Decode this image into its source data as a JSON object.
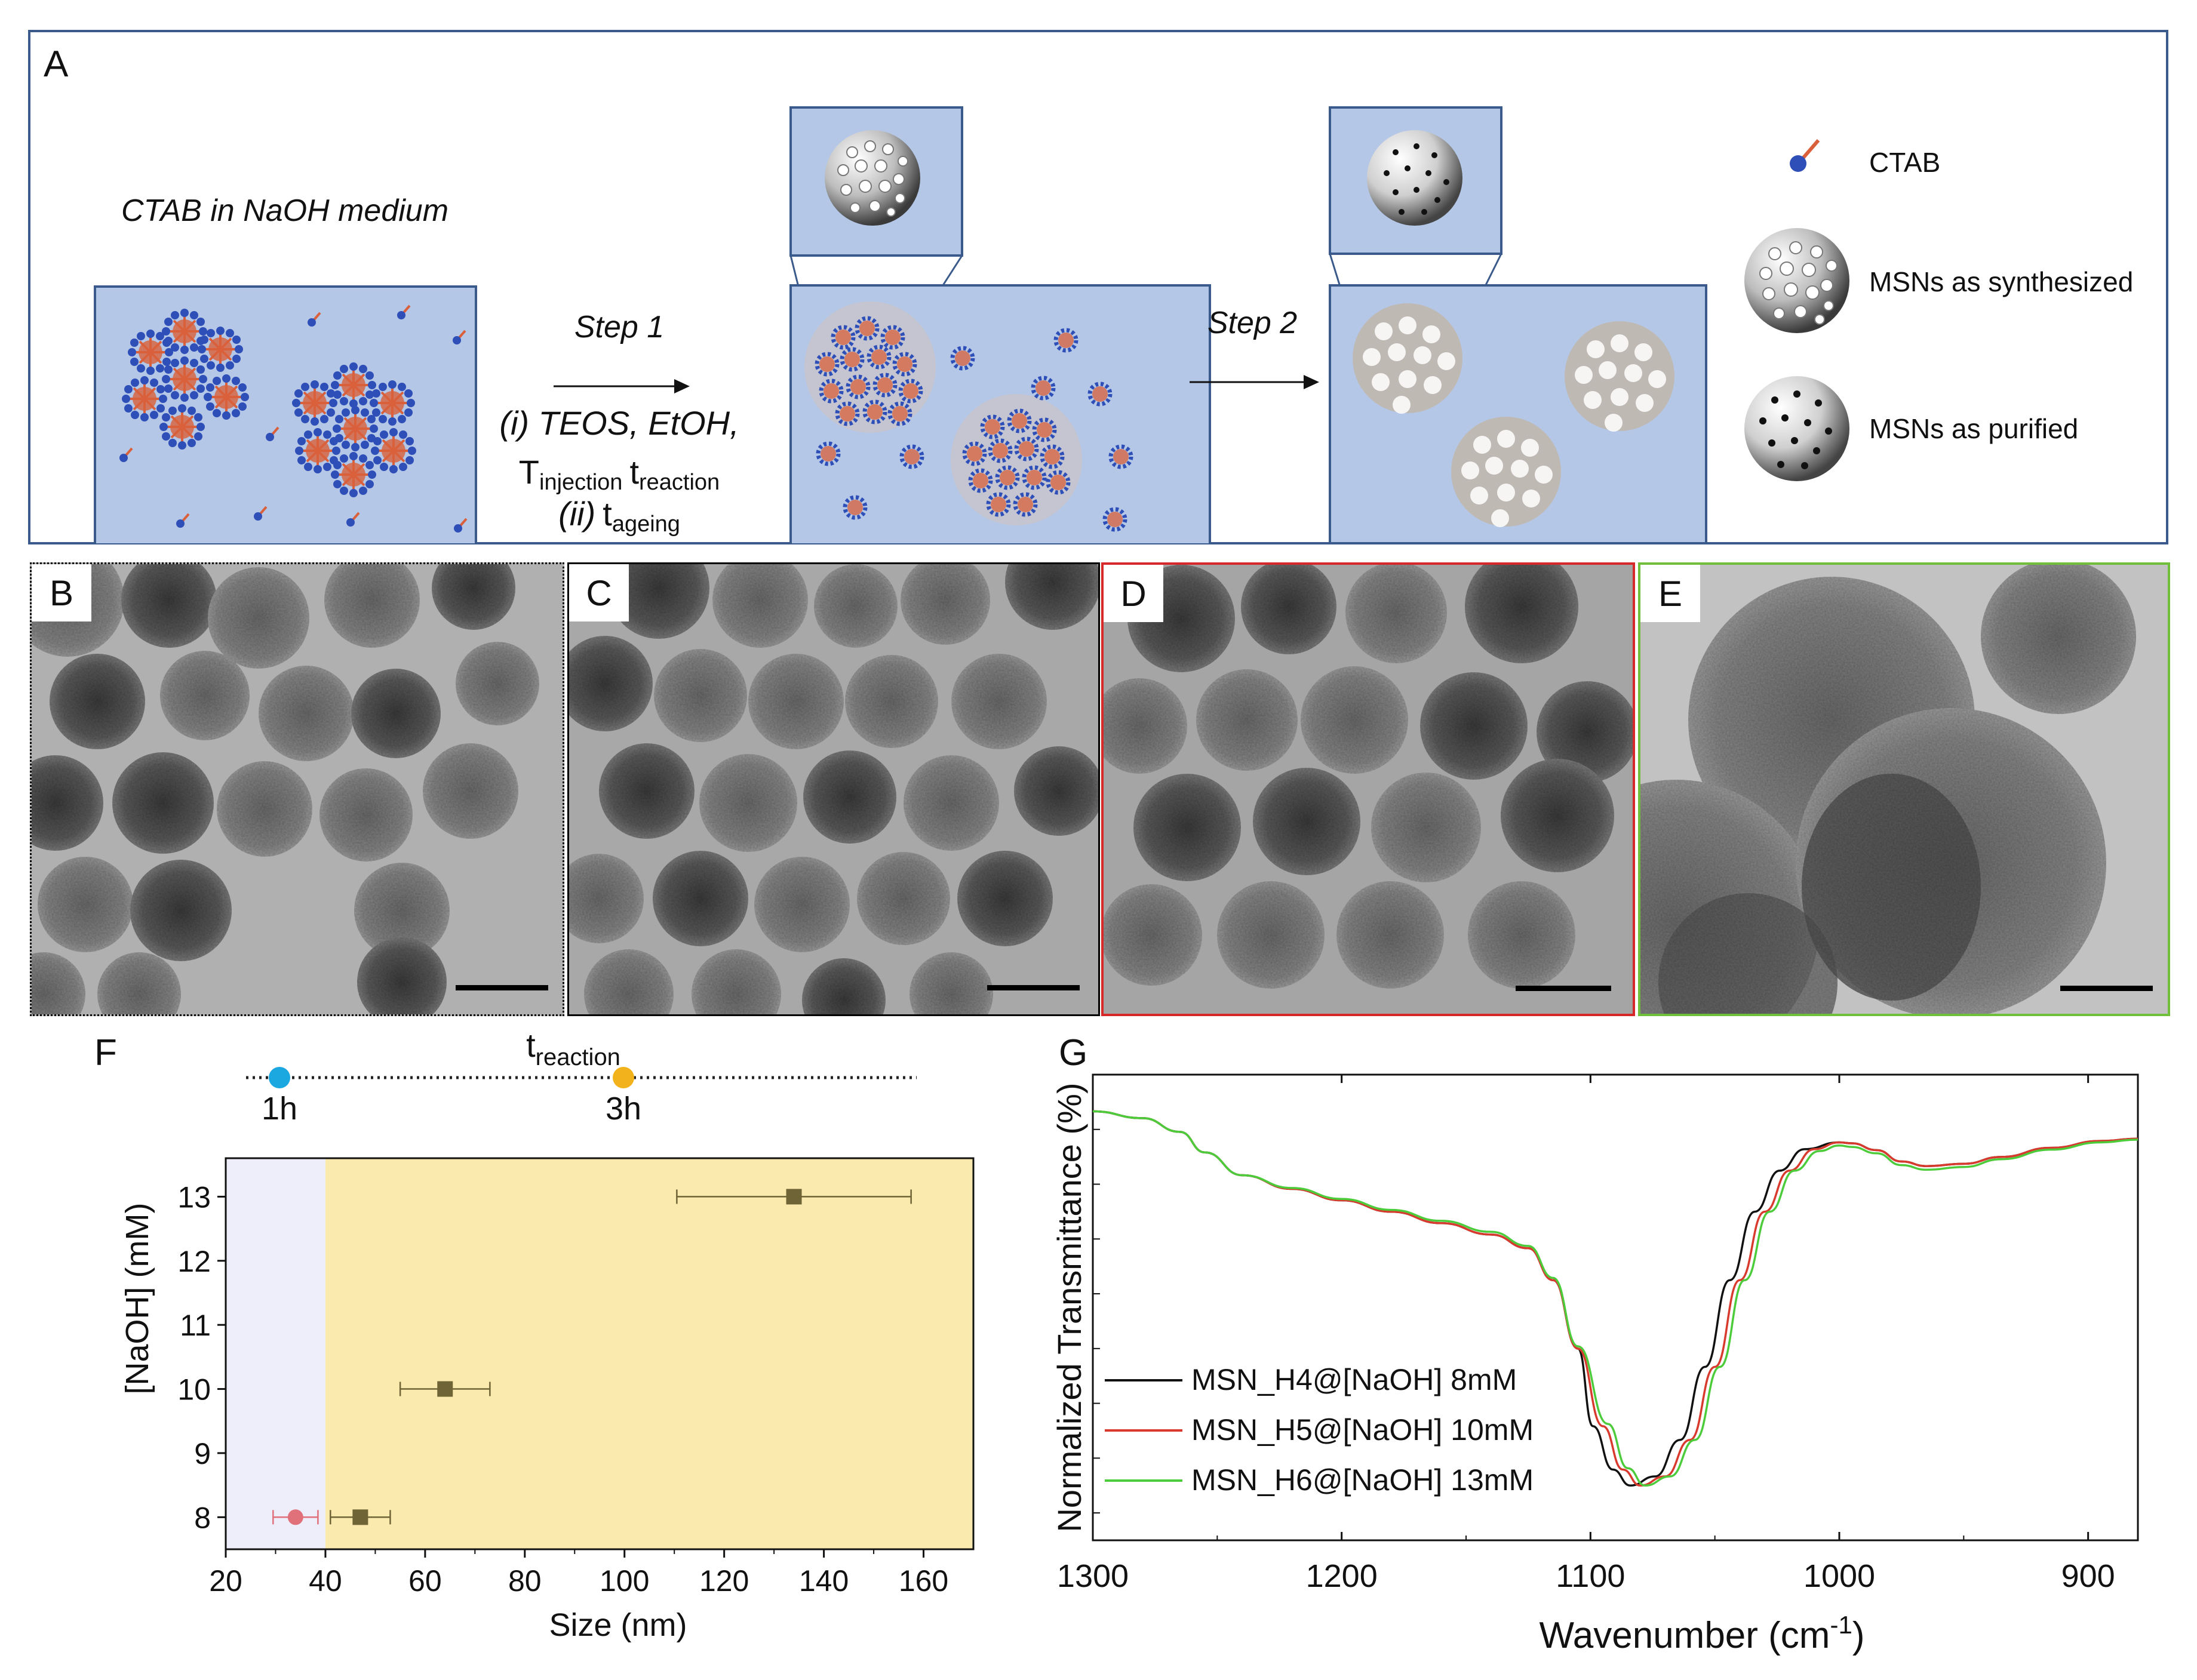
{
  "panels": {
    "A": "A",
    "B": "B",
    "C": "C",
    "D": "D",
    "E": "E",
    "F": "F",
    "G": "G"
  },
  "schematic": {
    "medium_label": "CTAB in NaOH medium",
    "step1": "Step 1",
    "step1_line1": "(i) TEOS, EtOH,",
    "step1_T": "T",
    "step1_T_sub": "injection",
    "step1_t": "t",
    "step1_t_sub": "reaction",
    "step1_line3_prefix": "(ii)",
    "step1_line3_t": "t",
    "step1_line3_sub": "ageing",
    "step2": "Step 2",
    "legend": [
      {
        "icon": "ctab-molecule-icon",
        "label": "CTAB"
      },
      {
        "icon": "msn-synthesized-icon",
        "label": "MSNs as synthesized"
      },
      {
        "icon": "msn-purified-icon",
        "label": "MSNs as purified"
      }
    ],
    "colors": {
      "box": "#b4c7e7",
      "border": "#3b5a8c",
      "ctab_head": "#2f4fb8",
      "ctab_tail": "#d9603b"
    }
  },
  "tem": {
    "frame_colors": {
      "B": "#000000",
      "C": "#000000",
      "D": "#d62828",
      "E": "#6fbf3a"
    }
  },
  "timeline": {
    "label_t": "t",
    "label_sub": "reaction",
    "points": [
      {
        "label": "1h",
        "color": "#1ba8e0"
      },
      {
        "label": "3h",
        "color": "#f2b21b"
      }
    ]
  },
  "chart_data": [
    {
      "id": "F",
      "type": "scatter",
      "title": "",
      "xlabel": "Size (nm)",
      "ylabel": "[NaOH] (mM)",
      "xlim": [
        20,
        170
      ],
      "ylim": [
        7.5,
        13.6
      ],
      "xticks": [
        20,
        40,
        60,
        80,
        100,
        120,
        140,
        160
      ],
      "yticks": [
        8,
        9,
        10,
        11,
        12,
        13
      ],
      "regions": [
        {
          "name": "1h",
          "x": [
            20,
            40
          ],
          "color": "#eeeefa"
        },
        {
          "name": "3h",
          "x": [
            40,
            170
          ],
          "color": "#fbeaad"
        }
      ],
      "series": [
        {
          "name": "1h",
          "marker": "circle",
          "color": "#e0707a",
          "points": [
            {
              "x": 34,
              "y": 8,
              "xerr": 4.5
            }
          ]
        },
        {
          "name": "3h",
          "marker": "square",
          "color": "#6e6436",
          "points": [
            {
              "x": 47,
              "y": 8,
              "xerr": 6
            },
            {
              "x": 64,
              "y": 10,
              "xerr": 9
            },
            {
              "x": 134,
              "y": 13,
              "xerr": 23.5
            }
          ]
        }
      ]
    },
    {
      "id": "G",
      "type": "line",
      "title": "",
      "xlabel": "Wavenumber (cm",
      "xlabel_sup": "-1",
      "xlabel_end": ")",
      "ylabel": "Normalized Transmittance (%)",
      "xlim": [
        1300,
        880
      ],
      "ylim": [
        0,
        1
      ],
      "xticks": [
        1300,
        1200,
        1100,
        1000,
        900
      ],
      "series": [
        {
          "name": "MSN_H4@[NaOH] 8mM",
          "color": "#111111",
          "shift": 4,
          "points": [
            [
              1300,
              0.94
            ],
            [
              1280,
              0.925
            ],
            [
              1265,
              0.895
            ],
            [
              1255,
              0.85
            ],
            [
              1240,
              0.8
            ],
            [
              1220,
              0.77
            ],
            [
              1200,
              0.745
            ],
            [
              1180,
              0.72
            ],
            [
              1160,
              0.695
            ],
            [
              1140,
              0.67
            ],
            [
              1125,
              0.64
            ],
            [
              1115,
              0.57
            ],
            [
              1105,
              0.42
            ],
            [
              1095,
              0.25
            ],
            [
              1087,
              0.155
            ],
            [
              1080,
              0.12
            ],
            [
              1070,
              0.14
            ],
            [
              1060,
              0.22
            ],
            [
              1050,
              0.38
            ],
            [
              1040,
              0.57
            ],
            [
              1030,
              0.72
            ],
            [
              1020,
              0.81
            ],
            [
              1010,
              0.857
            ],
            [
              1000,
              0.872
            ],
            [
              995,
              0.87
            ],
            [
              985,
              0.855
            ],
            [
              975,
              0.83
            ],
            [
              965,
              0.82
            ],
            [
              950,
              0.825
            ],
            [
              935,
              0.84
            ],
            [
              915,
              0.86
            ],
            [
              895,
              0.875
            ],
            [
              880,
              0.88
            ]
          ]
        },
        {
          "name": "MSN_H5@[NaOH] 10mM",
          "color": "#d83a2e",
          "shift": 0,
          "points": [
            [
              1300,
              0.94
            ],
            [
              1280,
              0.925
            ],
            [
              1265,
              0.895
            ],
            [
              1255,
              0.85
            ],
            [
              1240,
              0.8
            ],
            [
              1220,
              0.77
            ],
            [
              1200,
              0.745
            ],
            [
              1180,
              0.72
            ],
            [
              1160,
              0.695
            ],
            [
              1140,
              0.67
            ],
            [
              1125,
              0.64
            ],
            [
              1115,
              0.57
            ],
            [
              1105,
              0.42
            ],
            [
              1095,
              0.25
            ],
            [
              1087,
              0.155
            ],
            [
              1080,
              0.12
            ],
            [
              1070,
              0.14
            ],
            [
              1060,
              0.22
            ],
            [
              1050,
              0.38
            ],
            [
              1040,
              0.57
            ],
            [
              1030,
              0.72
            ],
            [
              1020,
              0.81
            ],
            [
              1010,
              0.857
            ],
            [
              1000,
              0.872
            ],
            [
              995,
              0.87
            ],
            [
              985,
              0.855
            ],
            [
              975,
              0.83
            ],
            [
              965,
              0.82
            ],
            [
              950,
              0.825
            ],
            [
              935,
              0.84
            ],
            [
              915,
              0.86
            ],
            [
              895,
              0.875
            ],
            [
              880,
              0.88
            ]
          ]
        },
        {
          "name": "MSN_H6@[NaOH] 13mM",
          "color": "#4ccc3a",
          "shift": -2,
          "points": [
            [
              1300,
              0.94
            ],
            [
              1280,
              0.925
            ],
            [
              1265,
              0.895
            ],
            [
              1255,
              0.85
            ],
            [
              1240,
              0.8
            ],
            [
              1220,
              0.772
            ],
            [
              1200,
              0.748
            ],
            [
              1180,
              0.724
            ],
            [
              1160,
              0.7
            ],
            [
              1140,
              0.676
            ],
            [
              1125,
              0.645
            ],
            [
              1115,
              0.575
            ],
            [
              1105,
              0.425
            ],
            [
              1095,
              0.255
            ],
            [
              1087,
              0.158
            ],
            [
              1080,
              0.12
            ],
            [
              1070,
              0.14
            ],
            [
              1060,
              0.22
            ],
            [
              1050,
              0.38
            ],
            [
              1040,
              0.57
            ],
            [
              1030,
              0.72
            ],
            [
              1020,
              0.81
            ],
            [
              1010,
              0.853
            ],
            [
              1000,
              0.865
            ],
            [
              995,
              0.862
            ],
            [
              985,
              0.848
            ],
            [
              975,
              0.822
            ],
            [
              965,
              0.812
            ],
            [
              950,
              0.818
            ],
            [
              935,
              0.835
            ],
            [
              915,
              0.856
            ],
            [
              895,
              0.872
            ],
            [
              880,
              0.878
            ]
          ]
        }
      ]
    }
  ]
}
